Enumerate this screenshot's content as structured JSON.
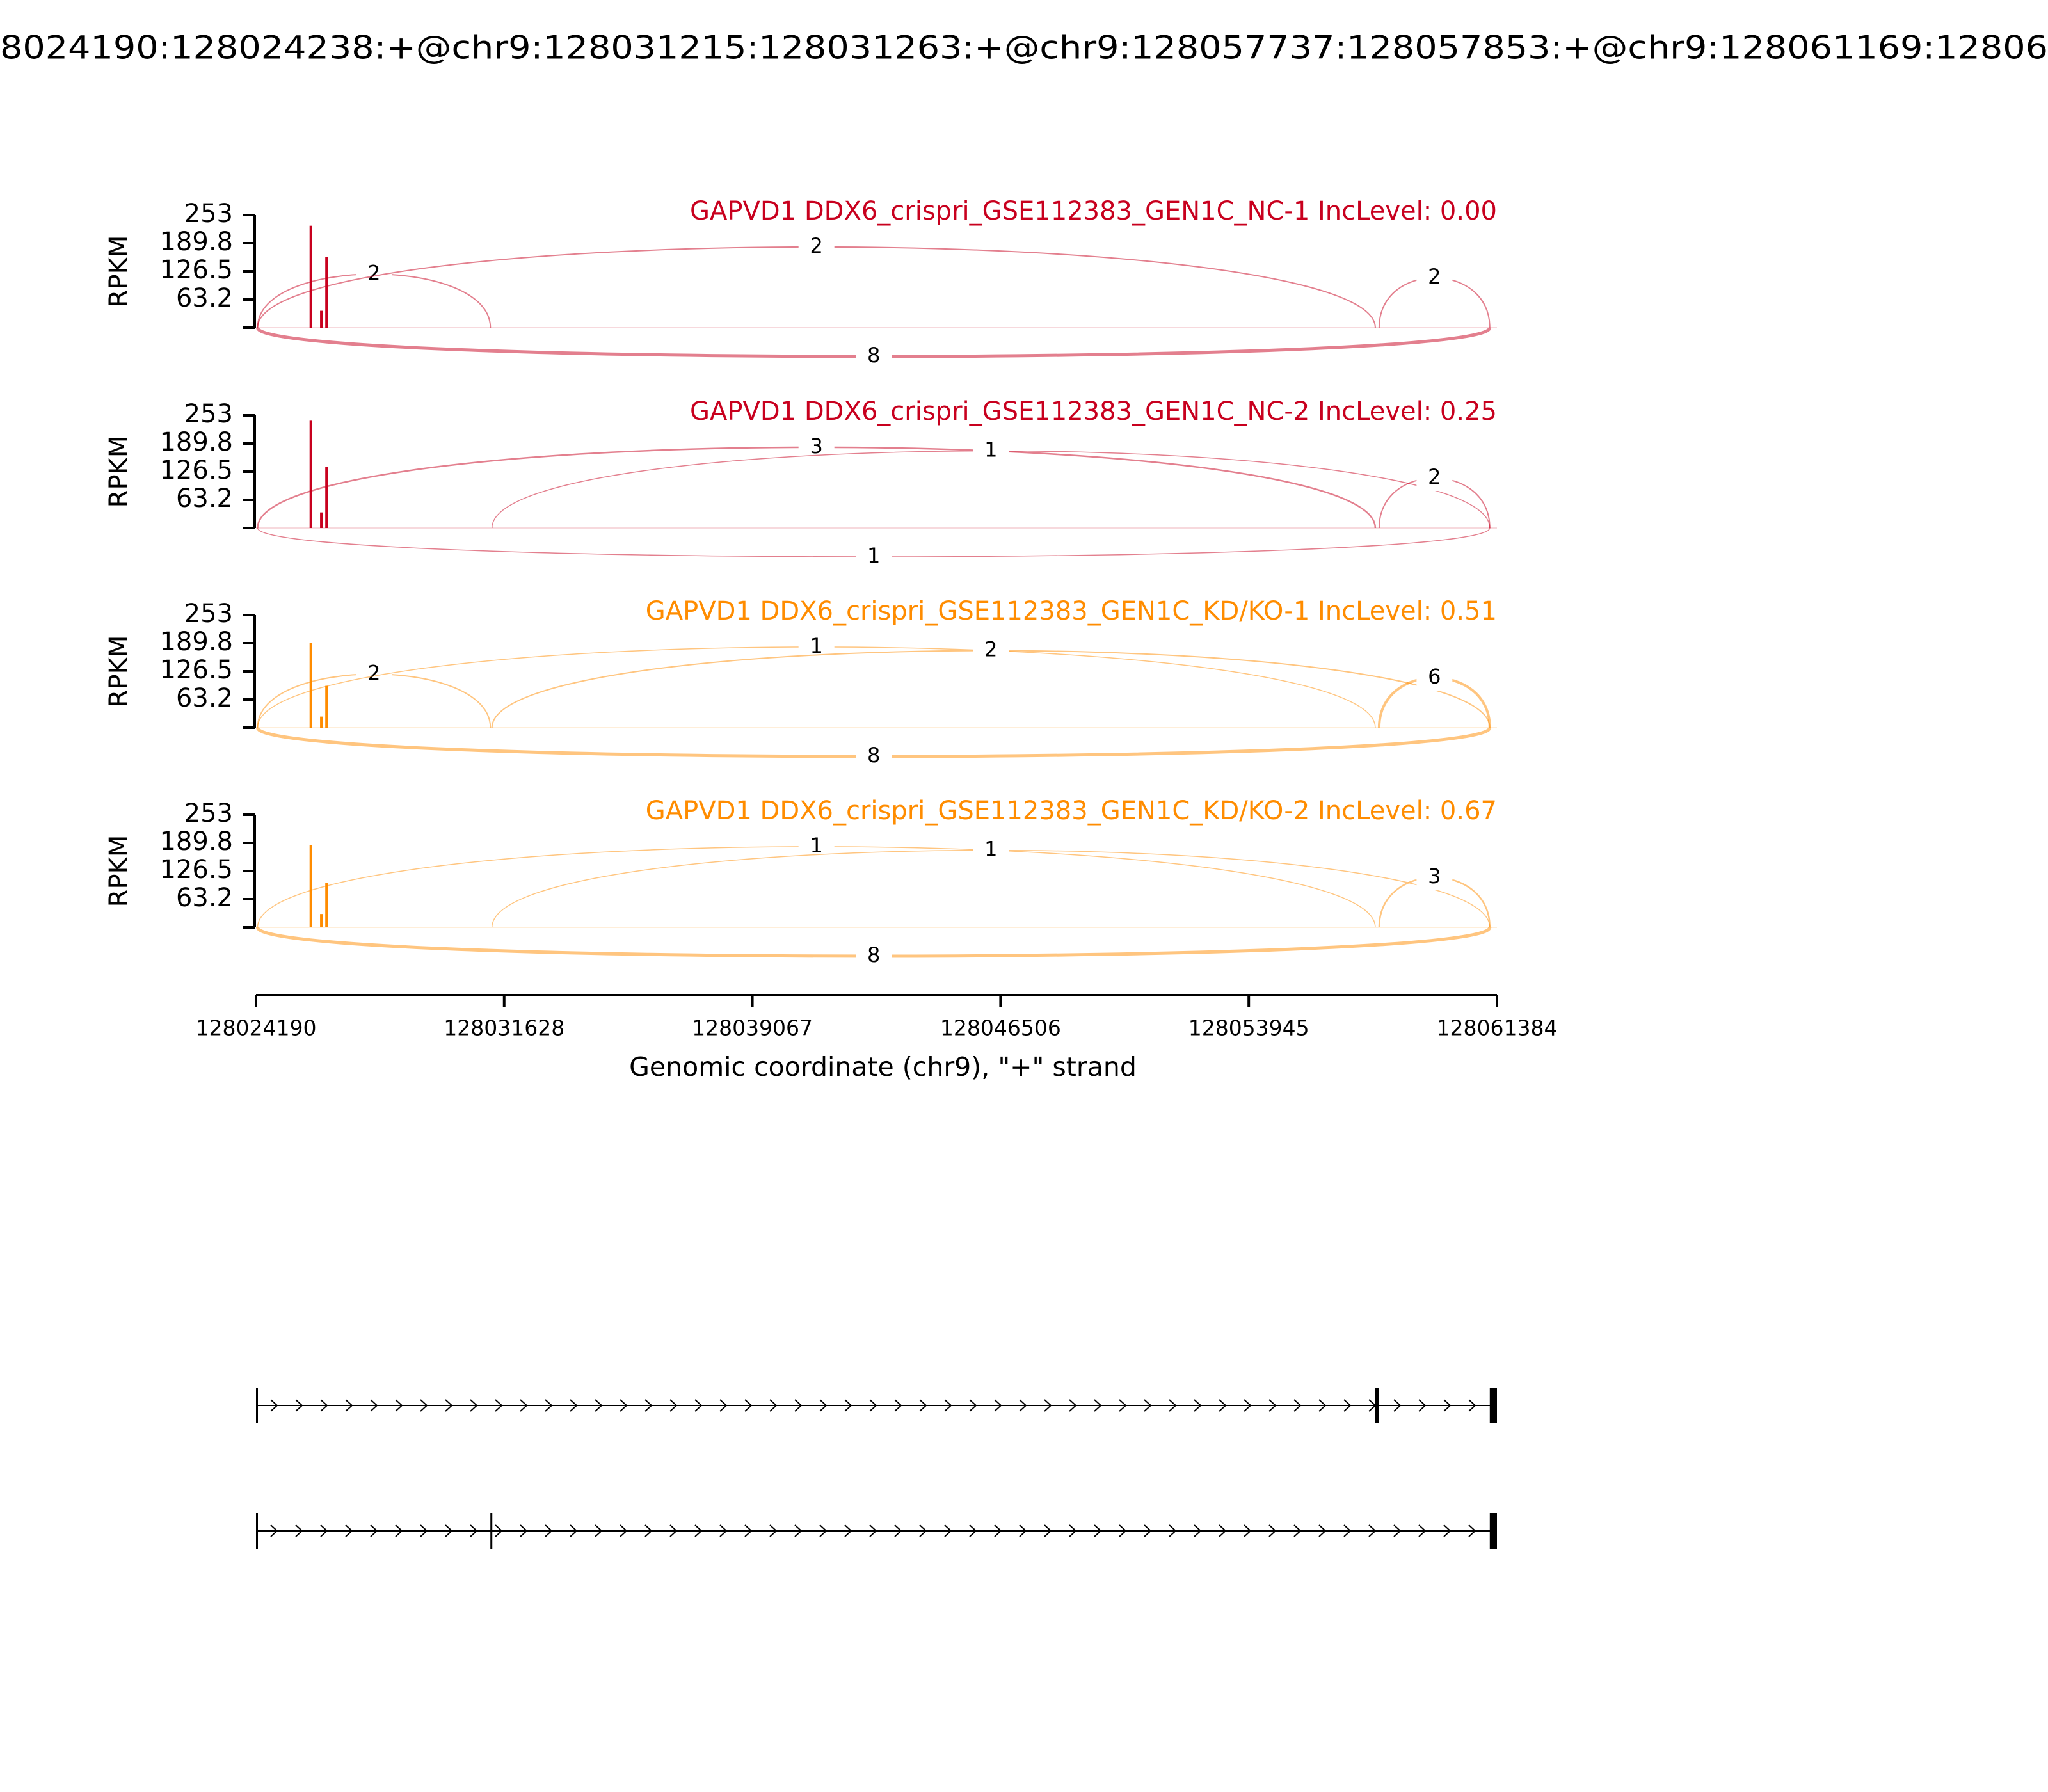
{
  "chart_data": {
    "type": "sashimi",
    "title": "8024190:128024238:+@chr9:128031215:128031263:+@chr9:128057737:128057853:+@chr9:128061169:12806",
    "xlim": [
      128024190,
      128061384
    ],
    "xticks": [
      128024190,
      128031628,
      128039067,
      128046506,
      128053945,
      128061384
    ],
    "xlabel": "Genomic coordinate (chr9), \"+\" strand",
    "panels": [
      {
        "title": "GAPVD1 DDX6_crispri_GSE112383_GEN1C_NC-1 IncLevel: 0.00",
        "color": "#c8001e",
        "ylabel": "RPKM",
        "ylim": [
          0,
          253
        ],
        "yticks": [
          63.2,
          126.5,
          189.8,
          253
        ],
        "coverage": {
          "x": [
            128025834,
            128026148,
            128026304
          ],
          "values": [
            229,
            38,
            159
          ]
        },
        "junctions": [
          {
            "start": 128024238,
            "end": 128031215,
            "count": 2,
            "side": "above"
          },
          {
            "start": 128024238,
            "end": 128057737,
            "count": 2,
            "side": "above"
          },
          {
            "start": 128057853,
            "end": 128061169,
            "count": 2,
            "side": "above"
          },
          {
            "start": 128024238,
            "end": 128061169,
            "count": 8,
            "side": "below"
          }
        ]
      },
      {
        "title": "GAPVD1 DDX6_crispri_GSE112383_GEN1C_NC-2 IncLevel: 0.25",
        "color": "#c8001e",
        "ylabel": "RPKM",
        "ylim": [
          0,
          253
        ],
        "yticks": [
          63.2,
          126.5,
          189.8,
          253
        ],
        "coverage": {
          "x": [
            128025834,
            128026148,
            128026304
          ],
          "values": [
            241,
            35,
            138
          ]
        },
        "junctions": [
          {
            "start": 128024238,
            "end": 128057737,
            "count": 3,
            "side": "above"
          },
          {
            "start": 128031263,
            "end": 128061169,
            "count": 1,
            "side": "above"
          },
          {
            "start": 128057853,
            "end": 128061169,
            "count": 2,
            "side": "above"
          },
          {
            "start": 128024238,
            "end": 128061169,
            "count": 1,
            "side": "below"
          }
        ]
      },
      {
        "title": "GAPVD1 DDX6_crispri_GSE112383_GEN1C_KD/KO-1 IncLevel: 0.51",
        "color": "#ff8c00",
        "ylabel": "RPKM",
        "ylim": [
          0,
          253
        ],
        "yticks": [
          63.2,
          126.5,
          189.8,
          253
        ],
        "coverage": {
          "x": [
            128025834,
            128026148,
            128026304
          ],
          "values": [
            191,
            25,
            94
          ]
        },
        "junctions": [
          {
            "start": 128024238,
            "end": 128031215,
            "count": 2,
            "side": "above"
          },
          {
            "start": 128024238,
            "end": 128057737,
            "count": 1,
            "side": "above"
          },
          {
            "start": 128031263,
            "end": 128061169,
            "count": 2,
            "side": "above"
          },
          {
            "start": 128057853,
            "end": 128061169,
            "count": 6,
            "side": "above"
          },
          {
            "start": 128024238,
            "end": 128061169,
            "count": 8,
            "side": "below"
          }
        ]
      },
      {
        "title": "GAPVD1 DDX6_crispri_GSE112383_GEN1C_KD/KO-2 IncLevel: 0.67",
        "color": "#ff8c00",
        "ylabel": "RPKM",
        "ylim": [
          0,
          253
        ],
        "yticks": [
          63.2,
          126.5,
          189.8,
          253
        ],
        "coverage": {
          "x": [
            128025834,
            128026148,
            128026304
          ],
          "values": [
            185,
            30,
            100
          ]
        },
        "junctions": [
          {
            "start": 128024238,
            "end": 128057737,
            "count": 1,
            "side": "above"
          },
          {
            "start": 128031263,
            "end": 128061169,
            "count": 1,
            "side": "above"
          },
          {
            "start": 128057853,
            "end": 128061169,
            "count": 3,
            "side": "above"
          },
          {
            "start": 128024238,
            "end": 128061169,
            "count": 8,
            "side": "below"
          }
        ]
      }
    ],
    "transcripts": [
      {
        "exons": [
          [
            128024190,
            128024238
          ],
          [
            128057737,
            128057853
          ],
          [
            128061169,
            128061384
          ]
        ]
      },
      {
        "exons": [
          [
            128024190,
            128024238
          ],
          [
            128031215,
            128031263
          ],
          [
            128061169,
            128061384
          ]
        ]
      }
    ]
  }
}
